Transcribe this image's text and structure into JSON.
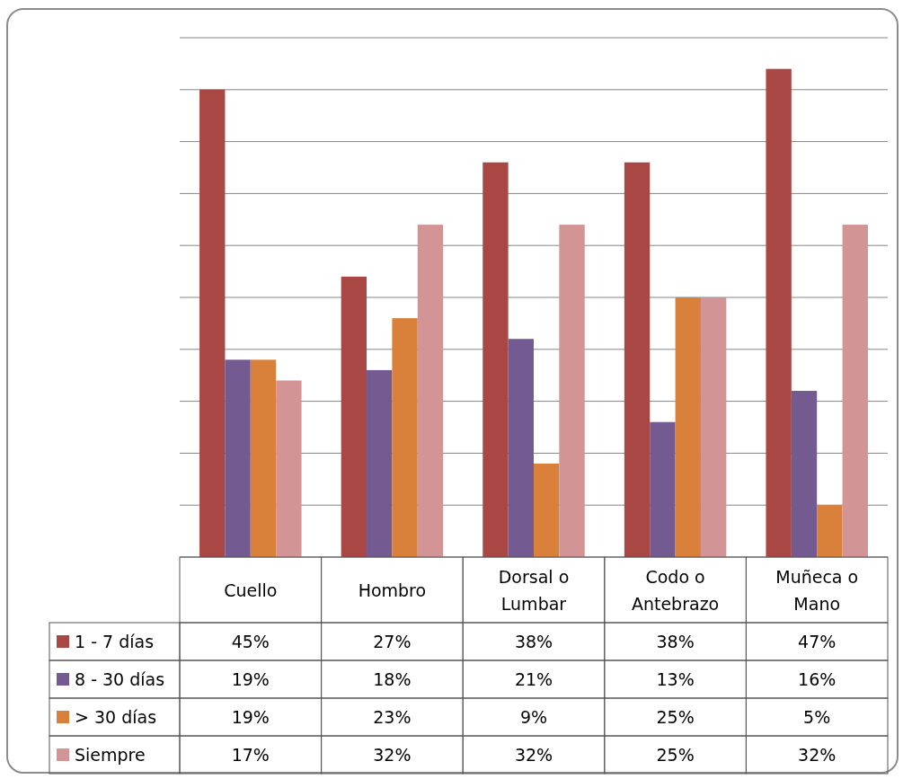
{
  "chart_data": {
    "type": "bar",
    "categories": [
      "Cuello",
      "Hombro",
      "Dorsal o Lumbar",
      "Codo o Antebrazo",
      "Muñeca o Mano"
    ],
    "series": [
      {
        "name": "1 - 7 días",
        "color": "#a94744",
        "values": [
          45,
          27,
          38,
          38,
          47
        ],
        "value_labels": [
          "45%",
          "27%",
          "38%",
          "38%",
          "47%"
        ]
      },
      {
        "name": "8 - 30 días",
        "color": "#735a91",
        "values": [
          19,
          18,
          21,
          13,
          16
        ],
        "value_labels": [
          "19%",
          "18%",
          "21%",
          "13%",
          "16%"
        ]
      },
      {
        "name": "> 30 días",
        "color": "#d9803b",
        "values": [
          19,
          23,
          9,
          25,
          5
        ],
        "value_labels": [
          "19%",
          "23%",
          "9%",
          "25%",
          "5%"
        ]
      },
      {
        "name": "Siempre",
        "color": "#d29494",
        "values": [
          17,
          32,
          32,
          25,
          32
        ],
        "value_labels": [
          "17%",
          "32%",
          "32%",
          "25%",
          "32%"
        ]
      }
    ],
    "ylim": [
      0,
      50
    ],
    "yticks": [
      {
        "value": 0,
        "label": null
      },
      {
        "value": 5,
        "label": null
      },
      {
        "value": 10,
        "label": null
      },
      {
        "value": 15,
        "label": null
      },
      {
        "value": 20,
        "label": null
      },
      {
        "value": 25,
        "label": null
      },
      {
        "value": 30,
        "label": null
      },
      {
        "value": 35,
        "label": null
      },
      {
        "value": 40,
        "label": null
      },
      {
        "value": 45,
        "label": null
      },
      {
        "value": 50,
        "label": null
      }
    ],
    "grid": "y",
    "legend": "bottom"
  }
}
